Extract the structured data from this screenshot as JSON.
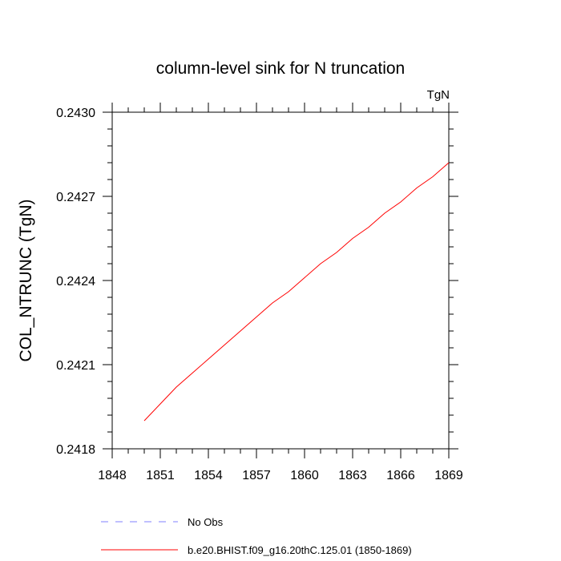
{
  "chart_data": {
    "type": "line",
    "title": "column-level sink for N truncation",
    "units_label": "TgN",
    "ylabel": "COL_NTRUNC  (TgN)",
    "xlabel": "",
    "xlim": [
      1848,
      1869
    ],
    "ylim": [
      0.2418,
      0.243
    ],
    "x_ticks": [
      1848,
      1851,
      1854,
      1857,
      1860,
      1863,
      1866,
      1869
    ],
    "x_tick_labels": [
      "1848",
      "1851",
      "1854",
      "1857",
      "1860",
      "1863",
      "1866",
      "1869"
    ],
    "y_ticks": [
      0.2418,
      0.2421,
      0.2424,
      0.2427,
      0.243
    ],
    "y_tick_labels": [
      "0.2418",
      "0.2421",
      "0.2424",
      "0.2427",
      "0.2430"
    ],
    "grid": false,
    "legend_position": "bottom",
    "series": [
      {
        "name": "No Obs",
        "color": "#8080ff",
        "style": "dashed",
        "x": [],
        "y": []
      },
      {
        "name": "b.e20.BHIST.f09_g16.20thC.125.01 (1850-1869)",
        "color": "#ff0000",
        "style": "solid",
        "x": [
          1850,
          1851,
          1852,
          1853,
          1854,
          1855,
          1856,
          1857,
          1858,
          1859,
          1860,
          1861,
          1862,
          1863,
          1864,
          1865,
          1866,
          1867,
          1868,
          1869
        ],
        "y": [
          0.2419,
          0.24196,
          0.24202,
          0.24207,
          0.24212,
          0.24217,
          0.24222,
          0.24227,
          0.24232,
          0.24236,
          0.24241,
          0.24246,
          0.2425,
          0.24255,
          0.24259,
          0.24264,
          0.24268,
          0.24273,
          0.24277,
          0.24282
        ]
      }
    ]
  }
}
